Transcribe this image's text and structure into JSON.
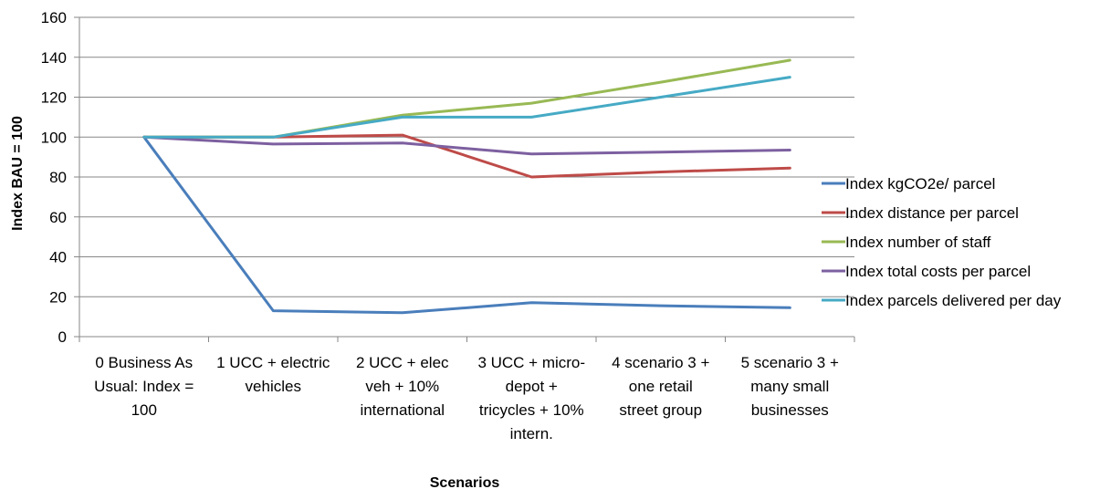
{
  "chart_data": {
    "type": "line",
    "title": "",
    "xlabel": "Scenarios",
    "ylabel": "Index BAU = 100",
    "ylim": [
      0,
      160
    ],
    "yticks": [
      0,
      20,
      40,
      60,
      80,
      100,
      120,
      140,
      160
    ],
    "grid": true,
    "legend_position": "right",
    "categories": [
      [
        "0 Business As",
        "Usual: Index =",
        "100"
      ],
      [
        "1 UCC + electric",
        "vehicles"
      ],
      [
        "2 UCC + elec",
        "veh + 10%",
        "international"
      ],
      [
        "3 UCC + micro-",
        "depot +",
        "tricycles + 10%",
        "intern."
      ],
      [
        "4 scenario 3 +",
        "one retail",
        "street group"
      ],
      [
        "5 scenario 3 +",
        "many small",
        "businesses"
      ]
    ],
    "series": [
      {
        "name": "Index kgCO2e/ parcel",
        "color": "#4a7ebb",
        "values": [
          100,
          13,
          12,
          17,
          15.5,
          14.5
        ]
      },
      {
        "name": "Index distance per parcel",
        "color": "#be4b48",
        "values": [
          100,
          100,
          101,
          80,
          82.5,
          84.5
        ]
      },
      {
        "name": "Index number of staff",
        "color": "#98b954",
        "values": [
          100,
          100,
          111,
          117,
          127.5,
          138.5
        ]
      },
      {
        "name": "Index total costs per parcel",
        "color": "#7d60a0",
        "values": [
          100,
          96.5,
          97,
          91.5,
          92.5,
          93.5
        ]
      },
      {
        "name": "Index parcels delivered per day",
        "color": "#46aac5",
        "values": [
          100,
          100,
          110,
          110,
          120,
          130
        ]
      }
    ]
  }
}
